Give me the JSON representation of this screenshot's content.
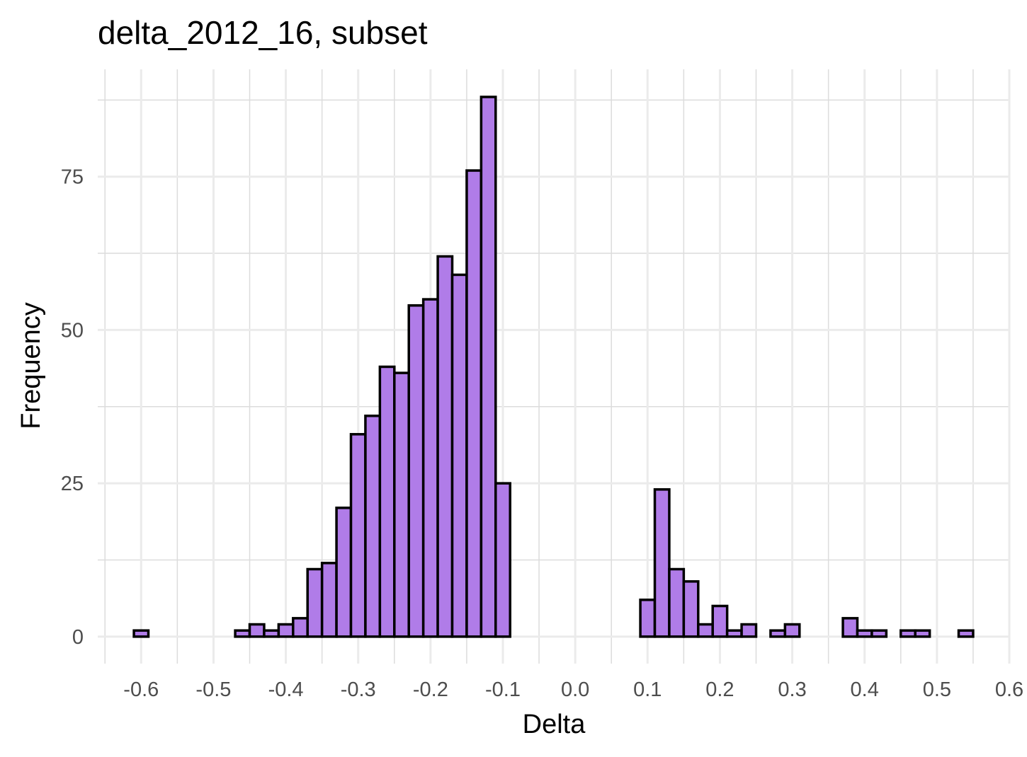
{
  "chart_data": {
    "type": "bar",
    "title": "delta_2012_16, subset",
    "xlabel": "Delta",
    "ylabel": "Frequency",
    "x_ticks": [
      "-0.6",
      "-0.5",
      "-0.4",
      "-0.3",
      "-0.2",
      "-0.1",
      "0.0",
      "0.1",
      "0.2",
      "0.3",
      "0.4",
      "0.5",
      "0.6"
    ],
    "y_ticks": [
      "0",
      "25",
      "50",
      "75"
    ],
    "xlim": [
      -0.66,
      0.6
    ],
    "ylim": [
      -4.4,
      92.5
    ],
    "bin_width": 0.02,
    "bin_centers": [
      -0.6,
      -0.58,
      -0.56,
      -0.54,
      -0.52,
      -0.5,
      -0.48,
      -0.46,
      -0.44,
      -0.42,
      -0.4,
      -0.38,
      -0.36,
      -0.34,
      -0.32,
      -0.3,
      -0.28,
      -0.26,
      -0.24,
      -0.22,
      -0.2,
      -0.18,
      -0.16,
      -0.14,
      -0.12,
      -0.1,
      -0.08,
      -0.06,
      -0.04,
      -0.02,
      0.0,
      0.02,
      0.04,
      0.06,
      0.08,
      0.1,
      0.12,
      0.14,
      0.16,
      0.18,
      0.2,
      0.22,
      0.24,
      0.26,
      0.28,
      0.3,
      0.32,
      0.34,
      0.36,
      0.38,
      0.4,
      0.42,
      0.44,
      0.46,
      0.48,
      0.5,
      0.52,
      0.54
    ],
    "values": [
      1,
      0,
      0,
      0,
      0,
      0,
      0,
      1,
      2,
      1,
      2,
      3,
      11,
      12,
      21,
      33,
      36,
      44,
      43,
      54,
      55,
      62,
      59,
      76,
      88,
      25,
      0,
      0,
      0,
      0,
      0,
      0,
      0,
      0,
      0,
      6,
      24,
      11,
      9,
      2,
      5,
      1,
      2,
      0,
      1,
      2,
      0,
      0,
      0,
      3,
      1,
      1,
      0,
      1,
      1,
      0,
      0,
      1
    ],
    "bar_fill": "#b07ce8",
    "bar_stroke": "#000000",
    "grid": true
  }
}
